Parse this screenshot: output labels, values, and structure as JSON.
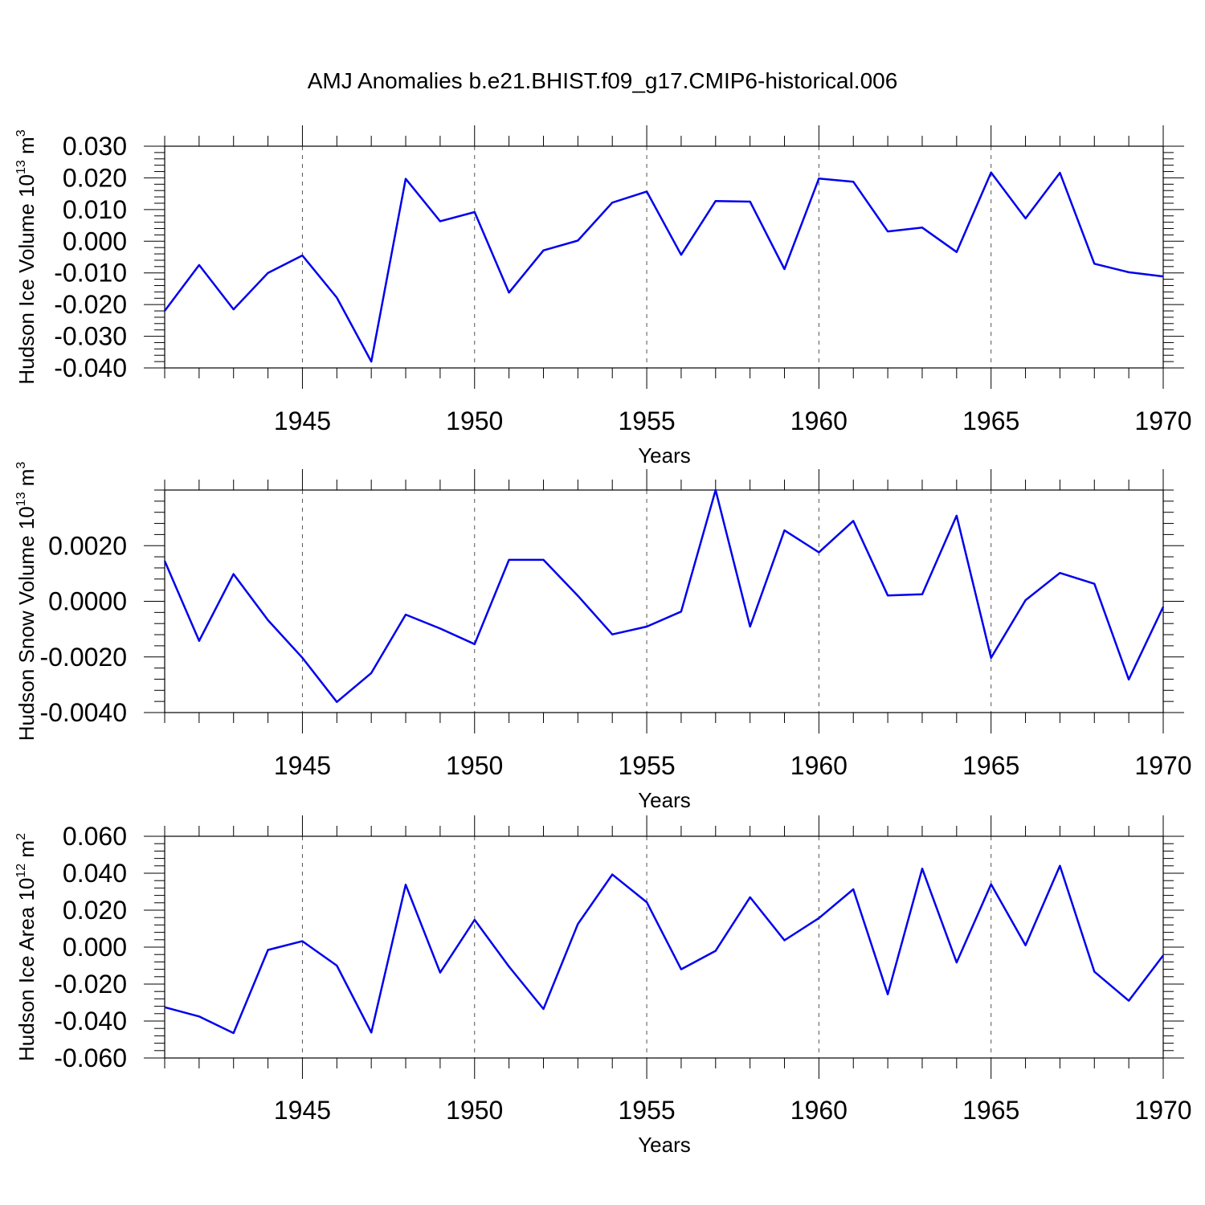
{
  "title": "AMJ Anomalies b.e21.BHIST.f09_g17.CMIP6-historical.006",
  "chart_data": [
    {
      "type": "line",
      "ylabel": "Hudson Ice Volume 10",
      "ylabel_exponent": "13",
      "ylabel_unit": " m",
      "ylabel_unit_exponent": "3",
      "xlabel": "Years",
      "xlim": [
        1941,
        1970
      ],
      "ylim": [
        -0.04,
        0.03
      ],
      "yticks": [
        -0.04,
        -0.03,
        -0.02,
        -0.01,
        0.0,
        0.01,
        0.02,
        0.03
      ],
      "ytick_labels": [
        "-0.040",
        "-0.030",
        "-0.020",
        "-0.010",
        "0.000",
        "0.010",
        "0.020",
        "0.030"
      ],
      "xticks": [
        1945,
        1950,
        1955,
        1960,
        1965,
        1970
      ],
      "xtick_labels": [
        "1945",
        "1950",
        "1955",
        "1960",
        "1965",
        "1970"
      ],
      "grid": "vertical dashed at major x ticks",
      "color": "#0000ee",
      "x": [
        1941,
        1942,
        1943,
        1944,
        1945,
        1946,
        1947,
        1948,
        1949,
        1950,
        1951,
        1952,
        1953,
        1954,
        1955,
        1956,
        1957,
        1958,
        1959,
        1960,
        1961,
        1962,
        1963,
        1964,
        1965,
        1966,
        1967,
        1968,
        1969,
        1970
      ],
      "y": [
        -0.022,
        -0.0075,
        -0.0215,
        -0.01,
        -0.0045,
        -0.0178,
        -0.038,
        0.0197,
        0.0063,
        0.0092,
        -0.0162,
        -0.0029,
        0.0002,
        0.0122,
        0.0157,
        -0.0043,
        0.0127,
        0.0125,
        -0.0088,
        0.0198,
        0.0188,
        0.0031,
        0.0043,
        -0.0034,
        0.0217,
        0.0072,
        0.0216,
        -0.0071,
        -0.0098,
        -0.0111
      ]
    },
    {
      "type": "line",
      "ylabel": "Hudson Snow Volume 10",
      "ylabel_exponent": "13",
      "ylabel_unit": " m",
      "ylabel_unit_exponent": "3",
      "xlabel": "Years",
      "xlim": [
        1941,
        1970
      ],
      "ylim": [
        -0.004,
        0.004
      ],
      "yticks": [
        -0.004,
        -0.002,
        0.0,
        0.002
      ],
      "ytick_labels": [
        "-0.0040",
        "-0.0020",
        "0.0000",
        "0.0020"
      ],
      "xticks": [
        1945,
        1950,
        1955,
        1960,
        1965,
        1970
      ],
      "xtick_labels": [
        "1945",
        "1950",
        "1955",
        "1960",
        "1965",
        "1970"
      ],
      "grid": "vertical dashed at major x ticks",
      "color": "#0000ee",
      "x": [
        1941,
        1942,
        1943,
        1944,
        1945,
        1946,
        1947,
        1948,
        1949,
        1950,
        1951,
        1952,
        1953,
        1954,
        1955,
        1956,
        1957,
        1958,
        1959,
        1960,
        1961,
        1962,
        1963,
        1964,
        1965,
        1966,
        1967,
        1968,
        1969,
        1970
      ],
      "y": [
        0.00145,
        -0.00142,
        0.00098,
        -0.00068,
        -0.00203,
        -0.00362,
        -0.00258,
        -0.00048,
        -0.00098,
        -0.00154,
        0.00149,
        0.00149,
        0.0002,
        -0.00119,
        -0.00091,
        -0.00037,
        0.004,
        -0.00091,
        0.00255,
        0.00176,
        0.00289,
        0.00021,
        0.00025,
        0.00308,
        -0.00203,
        4e-05,
        0.00102,
        0.00063,
        -0.00281,
        -0.0002
      ]
    },
    {
      "type": "line",
      "ylabel": "Hudson Ice Area 10",
      "ylabel_exponent": "12",
      "ylabel_unit": " m",
      "ylabel_unit_exponent": "2",
      "xlabel": "Years",
      "xlim": [
        1941,
        1970
      ],
      "ylim": [
        -0.06,
        0.06
      ],
      "yticks": [
        -0.06,
        -0.04,
        -0.02,
        0.0,
        0.02,
        0.04,
        0.06
      ],
      "ytick_labels": [
        "-0.060",
        "-0.040",
        "-0.020",
        "0.000",
        "0.020",
        "0.040",
        "0.060"
      ],
      "xticks": [
        1945,
        1950,
        1955,
        1960,
        1965,
        1970
      ],
      "xtick_labels": [
        "1945",
        "1950",
        "1955",
        "1960",
        "1965",
        "1970"
      ],
      "grid": "vertical dashed at major x ticks",
      "color": "#0000ee",
      "x": [
        1941,
        1942,
        1943,
        1944,
        1945,
        1946,
        1947,
        1948,
        1949,
        1950,
        1951,
        1952,
        1953,
        1954,
        1955,
        1956,
        1957,
        1958,
        1959,
        1960,
        1961,
        1962,
        1963,
        1964,
        1965,
        1966,
        1967,
        1968,
        1969,
        1970
      ],
      "y": [
        -0.0325,
        -0.0375,
        -0.0465,
        -0.0015,
        0.0032,
        -0.01,
        -0.0462,
        0.0338,
        -0.0138,
        0.0148,
        -0.0105,
        -0.0335,
        0.0125,
        0.0393,
        0.0243,
        -0.012,
        -0.002,
        0.027,
        0.0037,
        0.0157,
        0.0313,
        -0.0255,
        0.0425,
        -0.0083,
        0.034,
        0.001,
        0.044,
        -0.0133,
        -0.029,
        -0.0045
      ]
    }
  ]
}
